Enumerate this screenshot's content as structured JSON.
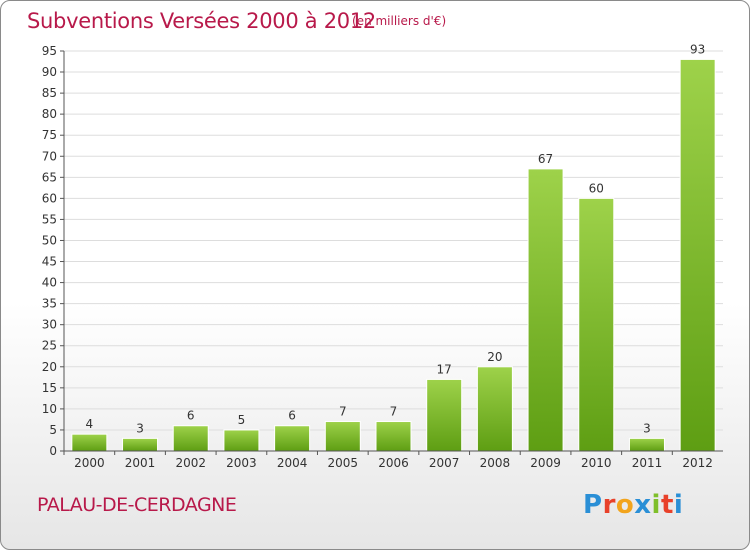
{
  "header": {
    "title": "Subventions Versées 2000 à 2012",
    "subtitle": "(en milliers d'€)"
  },
  "footer": {
    "commune": "PALAU-DE-CERDAGNE",
    "logo_text": "Proxiti",
    "logo_colors": [
      "#2a8fd6",
      "#e8412a",
      "#f2a41c",
      "#2a8fd6",
      "#7fbf2a",
      "#e8412a",
      "#2a8fd6"
    ]
  },
  "colors": {
    "bar_light": "#9ed24a",
    "bar_dark": "#5e9e13",
    "text": "#b8194a",
    "grid": "#dddddd"
  },
  "chart_data": {
    "type": "bar",
    "title": "Subventions Versées 2000 à 2012",
    "subtitle": "(en milliers d'€)",
    "categories": [
      "2000",
      "2001",
      "2002",
      "2003",
      "2004",
      "2005",
      "2006",
      "2007",
      "2008",
      "2009",
      "2010",
      "2011",
      "2012"
    ],
    "values": [
      4,
      3,
      6,
      5,
      6,
      7,
      7,
      17,
      20,
      67,
      60,
      3,
      93
    ],
    "ylim": [
      0,
      95
    ],
    "yticks": [
      0,
      5,
      10,
      15,
      20,
      25,
      30,
      35,
      40,
      45,
      50,
      55,
      60,
      65,
      70,
      75,
      80,
      85,
      90,
      95
    ],
    "grid": true,
    "legend": "none"
  }
}
